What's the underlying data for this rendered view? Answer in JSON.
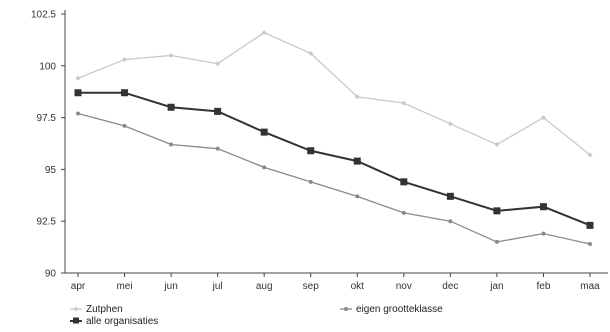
{
  "chart_data": {
    "type": "line",
    "categories": [
      "apr",
      "mei",
      "jun",
      "jul",
      "aug",
      "sep",
      "okt",
      "nov",
      "dec",
      "jan",
      "feb",
      "maa"
    ],
    "ylim": [
      90,
      102.5
    ],
    "yticks": [
      "102.5",
      "100",
      "97.5",
      "95",
      "92.5",
      "90"
    ],
    "ytick_values": [
      102.5,
      100,
      97.5,
      95,
      92.5,
      90
    ],
    "series": [
      {
        "name": "Zutphen",
        "color": "#c9c9c9",
        "marker": "diamond-small",
        "values": [
          99.4,
          100.3,
          100.5,
          100.1,
          101.6,
          100.6,
          98.5,
          98.2,
          97.2,
          96.2,
          97.5,
          95.7
        ]
      },
      {
        "name": "alle organisaties",
        "color": "#333333",
        "marker": "square",
        "values": [
          98.7,
          98.7,
          98.0,
          97.8,
          96.8,
          95.9,
          95.4,
          94.4,
          93.7,
          93.0,
          93.2,
          92.3
        ]
      },
      {
        "name": "eigen grootteklasse",
        "color": "#8a8a8a",
        "marker": "dot",
        "values": [
          97.7,
          97.1,
          96.2,
          96.0,
          95.1,
          94.4,
          93.7,
          92.9,
          92.5,
          91.5,
          91.9,
          91.4
        ]
      }
    ],
    "legend": {
      "placement": "bottom",
      "labels": [
        "Zutphen",
        "alle organisaties",
        "eigen grootteklasse"
      ]
    },
    "grid": false
  }
}
